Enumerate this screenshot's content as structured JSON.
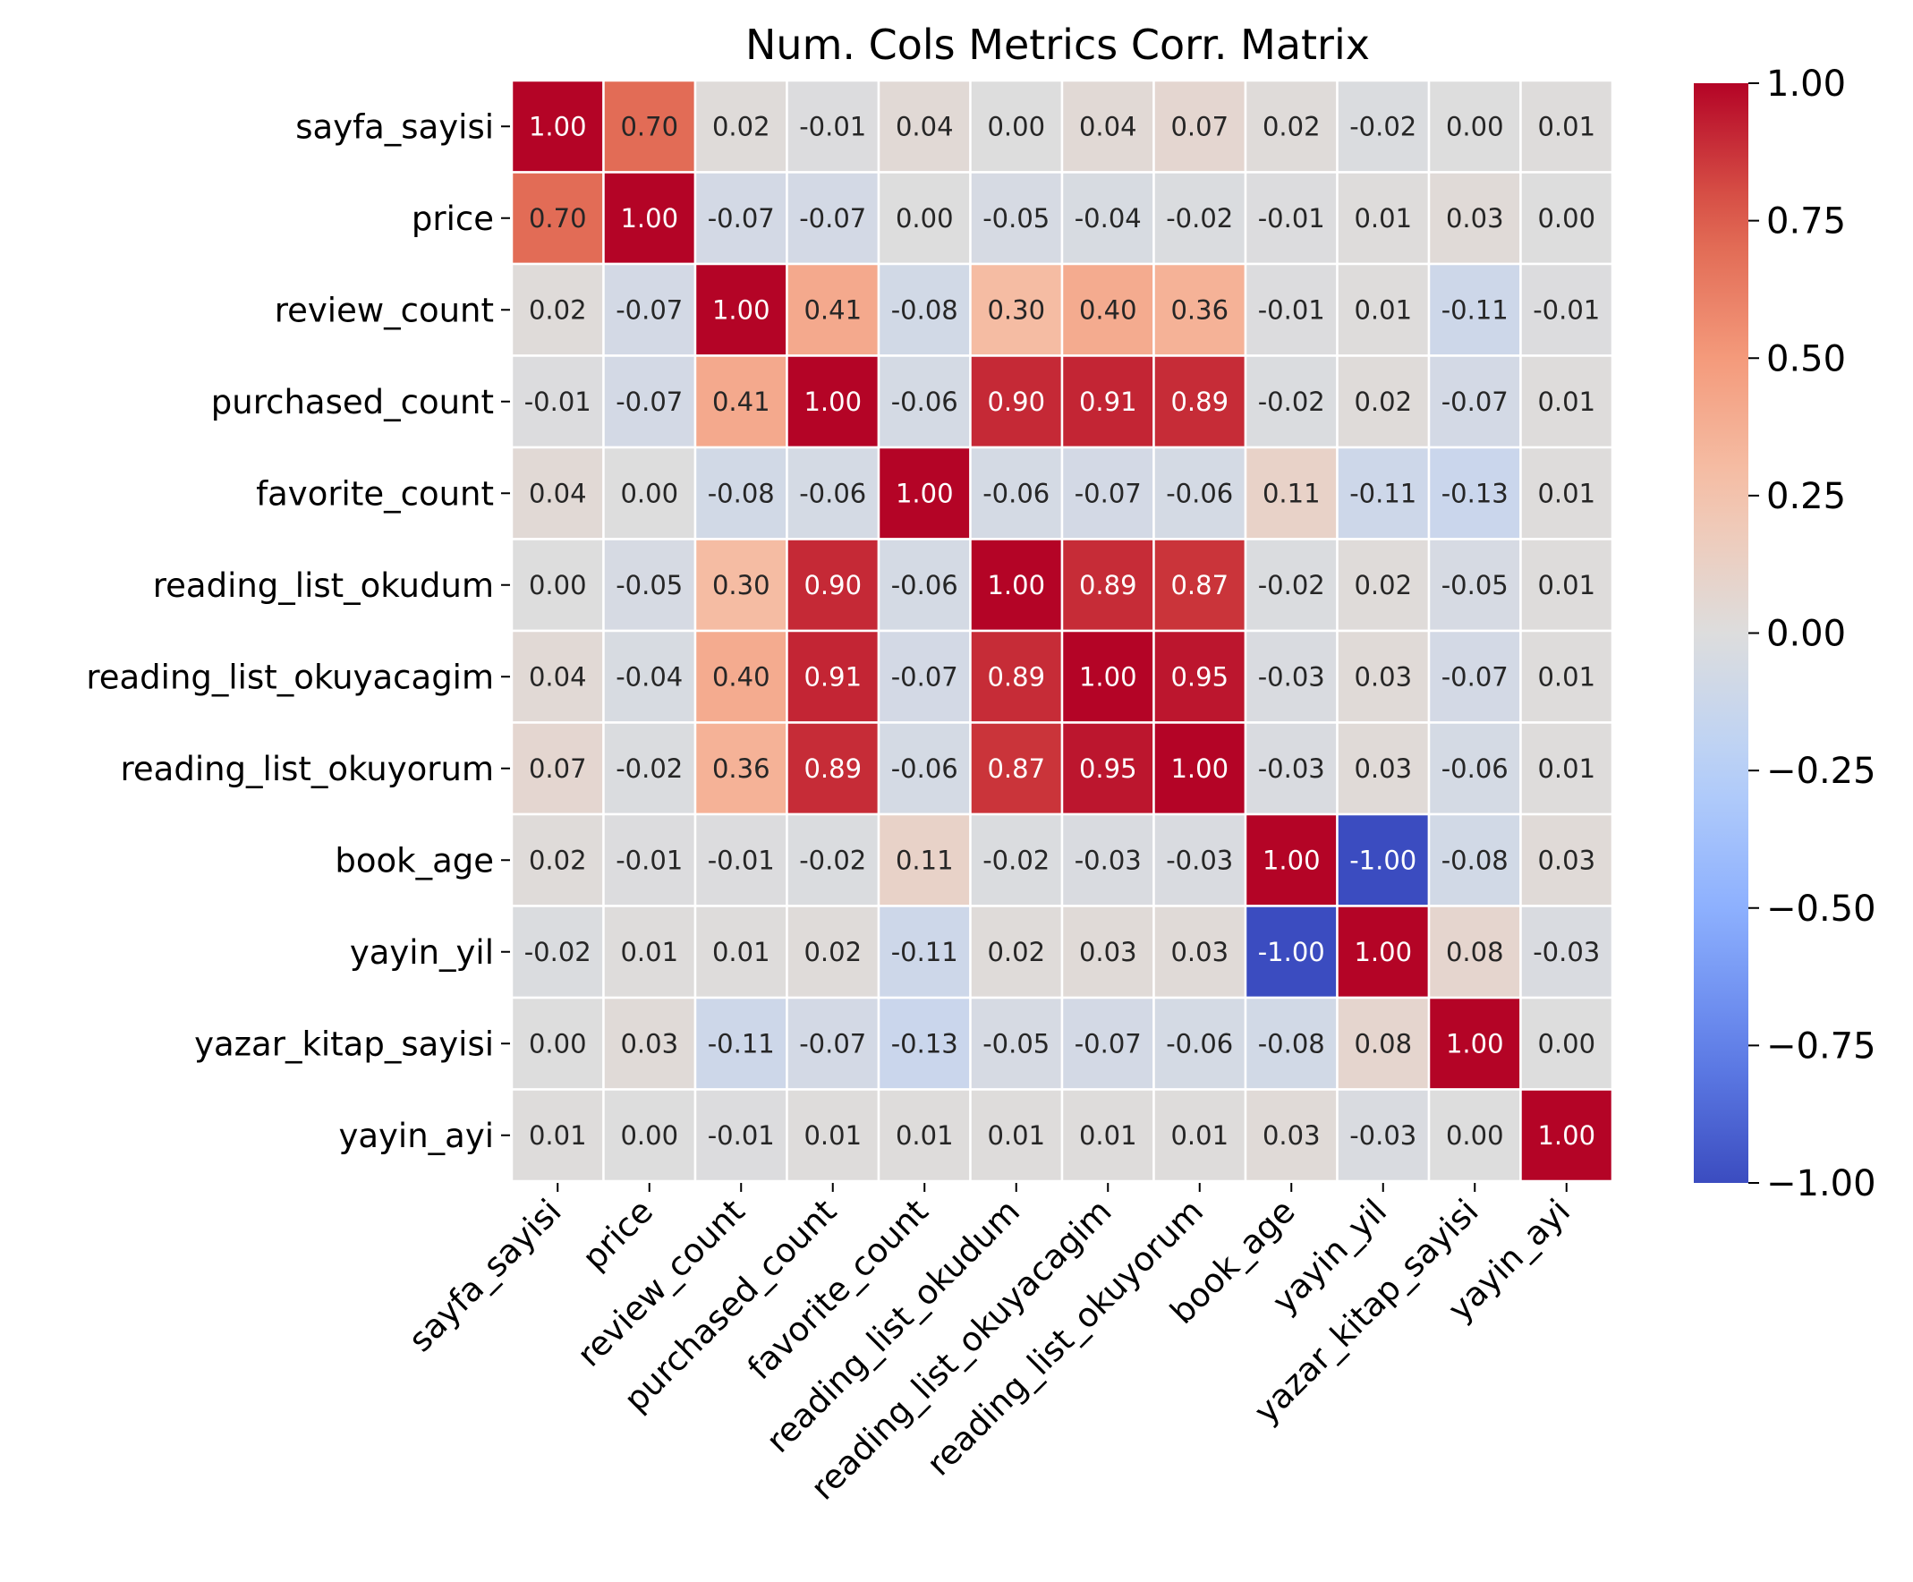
{
  "chart_data": {
    "type": "heatmap",
    "title": "Num. Cols Metrics Corr. Matrix",
    "xlabel": "",
    "ylabel": "",
    "colormap": "coolwarm",
    "vmin": -1.0,
    "vmax": 1.0,
    "value_format": "2 decimals",
    "labels": [
      "sayfa_sayisi",
      "price",
      "review_count",
      "purchased_count",
      "favorite_count",
      "reading_list_okudum",
      "reading_list_okuyacagim",
      "reading_list_okuyorum",
      "book_age",
      "yayin_yil",
      "yazar_kitap_sayisi",
      "yayin_ayi"
    ],
    "matrix": [
      [
        1.0,
        0.7,
        0.02,
        -0.01,
        0.04,
        -0.0,
        0.04,
        0.07,
        0.02,
        -0.02,
        -0.0,
        0.01
      ],
      [
        0.7,
        1.0,
        -0.07,
        -0.07,
        -0.0,
        -0.05,
        -0.04,
        -0.02,
        -0.01,
        0.01,
        0.03,
        -0.0
      ],
      [
        0.02,
        -0.07,
        1.0,
        0.41,
        -0.08,
        0.3,
        0.4,
        0.36,
        -0.01,
        0.01,
        -0.11,
        -0.01
      ],
      [
        -0.01,
        -0.07,
        0.41,
        1.0,
        -0.06,
        0.9,
        0.91,
        0.89,
        -0.02,
        0.02,
        -0.07,
        0.01
      ],
      [
        0.04,
        -0.0,
        -0.08,
        -0.06,
        1.0,
        -0.06,
        -0.07,
        -0.06,
        0.11,
        -0.11,
        -0.13,
        0.01
      ],
      [
        -0.0,
        -0.05,
        0.3,
        0.9,
        -0.06,
        1.0,
        0.89,
        0.87,
        -0.02,
        0.02,
        -0.05,
        0.01
      ],
      [
        0.04,
        -0.04,
        0.4,
        0.91,
        -0.07,
        0.89,
        1.0,
        0.95,
        -0.03,
        0.03,
        -0.07,
        0.01
      ],
      [
        0.07,
        -0.02,
        0.36,
        0.89,
        -0.06,
        0.87,
        0.95,
        1.0,
        -0.03,
        0.03,
        -0.06,
        0.01
      ],
      [
        0.02,
        -0.01,
        -0.01,
        -0.02,
        0.11,
        -0.02,
        -0.03,
        -0.03,
        1.0,
        -1.0,
        -0.08,
        0.03
      ],
      [
        -0.02,
        0.01,
        0.01,
        0.02,
        -0.11,
        0.02,
        0.03,
        0.03,
        -1.0,
        1.0,
        0.08,
        -0.03
      ],
      [
        -0.0,
        0.03,
        -0.11,
        -0.07,
        -0.13,
        -0.05,
        -0.07,
        -0.06,
        -0.08,
        0.08,
        1.0,
        -0.0
      ],
      [
        0.01,
        -0.0,
        -0.01,
        0.01,
        0.01,
        0.01,
        0.01,
        0.01,
        0.03,
        -0.03,
        -0.0,
        1.0
      ]
    ],
    "colorbar_ticks": [
      "1.00",
      "0.75",
      "0.50",
      "0.25",
      "0.00",
      "−0.25",
      "−0.50",
      "−0.75",
      "−1.00"
    ],
    "colorbar_tick_values": [
      1.0,
      0.75,
      0.5,
      0.25,
      0.0,
      -0.25,
      -0.5,
      -0.75,
      -1.0
    ],
    "grid": false,
    "cell_borders": "white"
  }
}
